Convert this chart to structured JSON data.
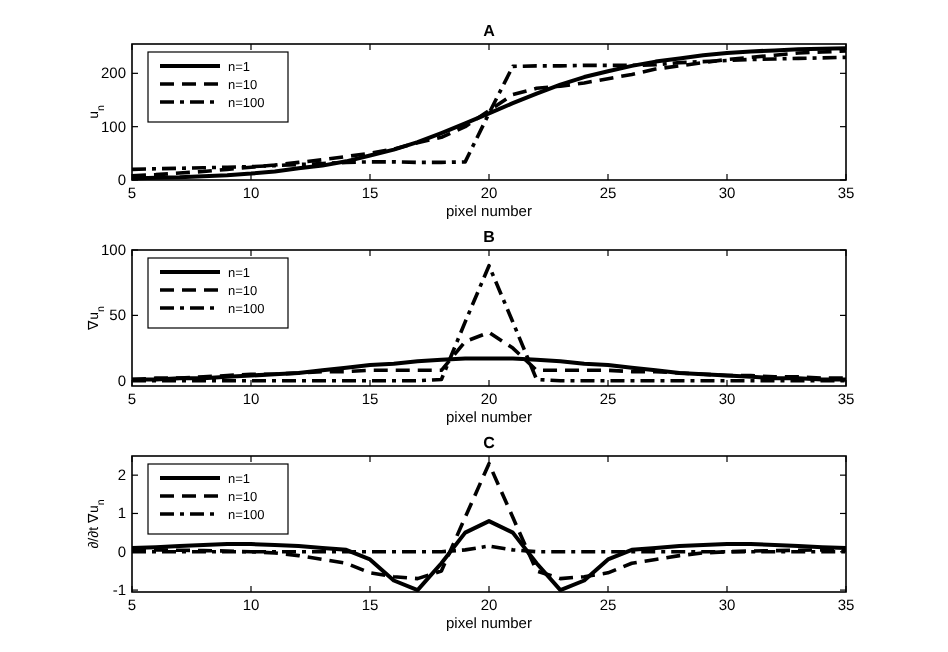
{
  "chart_data": [
    {
      "type": "line",
      "title": "A",
      "xlabel": "pixel number",
      "ylabel": "u$_{n}$",
      "x": [
        5,
        6,
        7,
        8,
        9,
        10,
        11,
        12,
        13,
        14,
        15,
        16,
        17,
        18,
        19,
        20,
        21,
        22,
        23,
        24,
        25,
        26,
        27,
        28,
        29,
        30,
        31,
        32,
        33,
        34,
        35
      ],
      "xlim": [
        5,
        35
      ],
      "xticks": [
        5,
        10,
        15,
        20,
        25,
        30,
        35
      ],
      "ylim": [
        0,
        255
      ],
      "yticks": [
        0,
        100,
        200
      ],
      "legend": "top left",
      "series": [
        {
          "name": "n=1",
          "color": "#000000",
          "line_style": "solid",
          "values": [
            3,
            4,
            5,
            7,
            9,
            12,
            16,
            22,
            27,
            35,
            46,
            57,
            71,
            88,
            106,
            125,
            144,
            162,
            179,
            193,
            204,
            214,
            222,
            228,
            234,
            238,
            241,
            243,
            245,
            246,
            247
          ]
        },
        {
          "name": "n=10",
          "color": "#000000",
          "line_style": "dashed",
          "values": [
            8,
            10,
            13,
            16,
            20,
            24,
            28,
            33,
            38,
            44,
            50,
            58,
            70,
            80,
            100,
            130,
            160,
            172,
            176,
            182,
            190,
            198,
            208,
            214,
            220,
            226,
            230,
            234,
            238,
            240,
            242
          ]
        },
        {
          "name": "n=100",
          "color": "#000000",
          "line_style": "dashdot",
          "values": [
            20,
            21,
            22,
            23,
            24,
            25,
            27,
            29,
            31,
            33,
            34,
            34,
            33,
            33,
            34,
            125,
            213,
            214,
            214,
            215,
            215,
            215,
            216,
            220,
            222,
            224,
            226,
            227,
            228,
            229,
            230
          ]
        }
      ]
    },
    {
      "type": "line",
      "title": "B",
      "xlabel": "pixel number",
      "ylabel": "∇u$_{n}$",
      "x": [
        5,
        6,
        7,
        8,
        9,
        10,
        11,
        12,
        13,
        14,
        15,
        16,
        17,
        18,
        19,
        20,
        21,
        22,
        23,
        24,
        25,
        26,
        27,
        28,
        29,
        30,
        31,
        32,
        33,
        34,
        35
      ],
      "xlim": [
        5,
        35
      ],
      "xticks": [
        5,
        10,
        15,
        20,
        25,
        30,
        35
      ],
      "ylim": [
        -4,
        100
      ],
      "yticks": [
        0,
        50,
        100
      ],
      "legend": "top left",
      "series": [
        {
          "name": "n=1",
          "color": "#000000",
          "line_style": "solid",
          "values": [
            1,
            1,
            2,
            2,
            3,
            4,
            5,
            6,
            8,
            10,
            12,
            13,
            15,
            16,
            17,
            17,
            17,
            16,
            15,
            13,
            12,
            10,
            8,
            6,
            5,
            4,
            3,
            2,
            2,
            1,
            1
          ]
        },
        {
          "name": "n=10",
          "color": "#000000",
          "line_style": "dashed",
          "values": [
            1,
            2,
            2,
            3,
            4,
            5,
            5,
            6,
            7,
            7,
            8,
            8,
            8,
            8,
            30,
            37,
            25,
            8,
            8,
            8,
            8,
            7,
            7,
            6,
            5,
            4,
            4,
            3,
            3,
            2,
            2
          ]
        },
        {
          "name": "n=100",
          "color": "#000000",
          "line_style": "dashdot",
          "values": [
            0,
            0,
            0,
            0,
            0,
            0,
            0,
            0,
            0,
            0,
            0,
            0,
            0,
            1,
            45,
            88,
            45,
            1,
            0,
            0,
            0,
            0,
            0,
            0,
            0,
            0,
            0,
            0,
            0,
            0,
            0
          ]
        }
      ]
    },
    {
      "type": "line",
      "title": "C",
      "xlabel": "pixel number",
      "ylabel": "∂/∂t ∇u$_{n}$",
      "x": [
        5,
        6,
        7,
        8,
        9,
        10,
        11,
        12,
        13,
        14,
        15,
        16,
        17,
        18,
        19,
        20,
        21,
        22,
        23,
        24,
        25,
        26,
        27,
        28,
        29,
        30,
        31,
        32,
        33,
        34,
        35
      ],
      "xlim": [
        5,
        35
      ],
      "xticks": [
        5,
        10,
        15,
        20,
        25,
        30,
        35
      ],
      "ylim": [
        -1.05,
        2.5
      ],
      "yticks": [
        -1,
        0,
        1,
        2
      ],
      "legend": "top left",
      "series": [
        {
          "name": "n=1",
          "color": "#000000",
          "line_style": "solid",
          "values": [
            0.1,
            0.12,
            0.15,
            0.18,
            0.2,
            0.2,
            0.18,
            0.15,
            0.1,
            0.05,
            -0.2,
            -0.75,
            -1,
            -0.3,
            0.5,
            0.8,
            0.5,
            -0.3,
            -1,
            -0.75,
            -0.2,
            0.05,
            0.1,
            0.15,
            0.18,
            0.2,
            0.2,
            0.18,
            0.15,
            0.12,
            0.1
          ]
        },
        {
          "name": "n=10",
          "color": "#000000",
          "line_style": "dashed",
          "values": [
            0.05,
            0.05,
            0.04,
            0.03,
            0.02,
            0,
            -0.03,
            -0.1,
            -0.2,
            -0.3,
            -0.55,
            -0.65,
            -0.7,
            -0.5,
            0.9,
            2.3,
            0.9,
            -0.5,
            -0.7,
            -0.65,
            -0.55,
            -0.3,
            -0.2,
            -0.1,
            -0.03,
            0,
            0.02,
            0.03,
            0.04,
            0.05,
            0.05
          ]
        },
        {
          "name": "n=100",
          "color": "#000000",
          "line_style": "dashdot",
          "values": [
            0,
            0,
            0,
            0,
            0,
            0,
            0,
            0,
            0,
            0,
            0,
            0,
            0,
            0,
            0.05,
            0.15,
            0.05,
            0,
            0,
            0,
            0,
            0,
            0,
            0,
            0,
            0,
            0,
            0,
            0,
            0,
            0
          ]
        }
      ]
    }
  ]
}
